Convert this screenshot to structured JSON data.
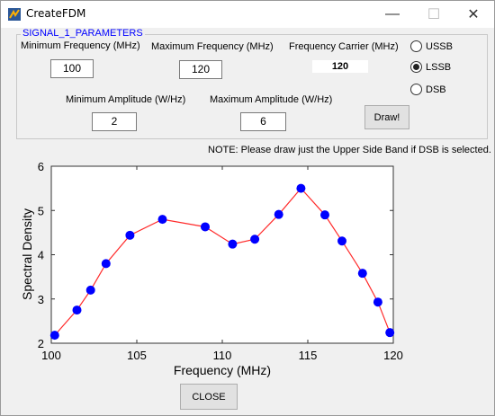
{
  "window": {
    "title": "CreateFDM",
    "minimize_glyph": "—",
    "maximize_glyph": "☐",
    "close_glyph": "✕"
  },
  "panel": {
    "title": "SIGNAL_1_PARAMETERS",
    "min_freq_label": "Minimum Frequency (MHz)",
    "min_freq_value": "100",
    "max_freq_label": "Maximum Frequency (MHz)",
    "max_freq_value": "120",
    "carrier_label": "Frequency Carrier (MHz)",
    "carrier_value": "120",
    "min_amp_label": "Minimum Amplitude (W/Hz)",
    "min_amp_value": "2",
    "max_amp_label": "Maximum Amplitude (W/Hz)",
    "max_amp_value": "6",
    "draw_label": "Draw!",
    "radios": [
      {
        "label": "USSB",
        "selected": false
      },
      {
        "label": "LSSB",
        "selected": true
      },
      {
        "label": "DSB",
        "selected": false
      }
    ]
  },
  "note": "NOTE: Please draw just the Upper Side Band if DSB is selected.",
  "close_label": "CLOSE",
  "icons": {
    "app": "matlab-figure-icon"
  },
  "colors": {
    "line": "#ff2a2a",
    "marker": "#0000ff",
    "panel_title": "#0000ff"
  },
  "chart_data": {
    "type": "line",
    "xlabel": "Frequency (MHz)",
    "ylabel": "Spectral Density",
    "xlim": [
      100,
      120
    ],
    "ylim": [
      2,
      6
    ],
    "xticks": [
      100,
      105,
      110,
      115,
      120
    ],
    "yticks": [
      2,
      3,
      4,
      5,
      6
    ],
    "grid": false,
    "series": [
      {
        "x": [
          100.2,
          101.5,
          102.3,
          103.2,
          104.6,
          106.5,
          109.0,
          110.6,
          111.9,
          113.3,
          114.6,
          116.0,
          117.0,
          118.2,
          119.1,
          119.8
        ],
        "y": [
          2.18,
          2.75,
          3.2,
          3.8,
          4.44,
          4.8,
          4.63,
          4.24,
          4.35,
          4.91,
          5.5,
          4.9,
          4.31,
          3.58,
          2.93,
          2.24
        ]
      }
    ]
  }
}
